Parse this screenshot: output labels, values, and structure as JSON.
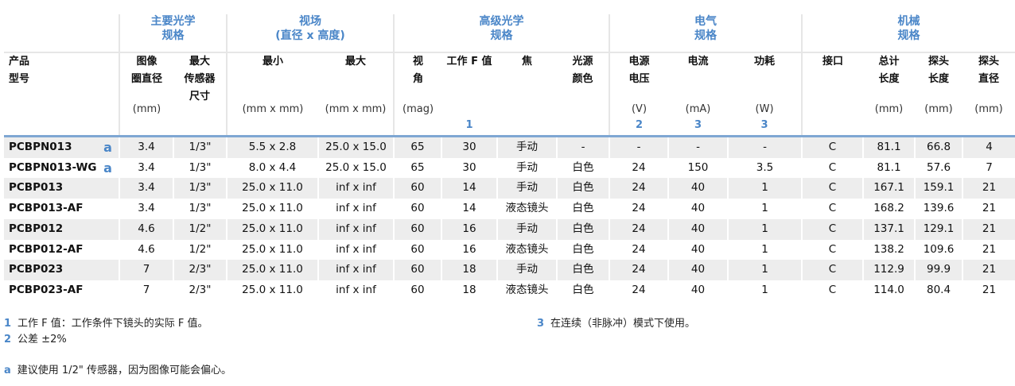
{
  "groups": [
    "主要光学\n规格",
    "视场\n(直径 x 高度)",
    "高级光学\n规格",
    "电气\n规格",
    "机械\n规格"
  ],
  "columns": [
    {
      "label": "产品\n型号",
      "unit": "",
      "note": ""
    },
    {
      "label": "",
      "unit": "",
      "note": ""
    },
    {
      "label": "图像\n圈直径",
      "unit": "(mm)",
      "note": ""
    },
    {
      "label": "最大\n传感器\n尺寸",
      "unit": "",
      "note": ""
    },
    {
      "label": "最小",
      "unit": "(mm x mm)",
      "note": ""
    },
    {
      "label": "最大",
      "unit": "(mm x mm)",
      "note": ""
    },
    {
      "label": "视\n角",
      "unit": "(mag)",
      "note": ""
    },
    {
      "label": "工作 F 值",
      "unit": "",
      "note": "1"
    },
    {
      "label": "焦",
      "unit": "",
      "note": ""
    },
    {
      "label": "光源\n颜色",
      "unit": "",
      "note": ""
    },
    {
      "label": "电源\n电压",
      "unit": "(V)",
      "note": "2"
    },
    {
      "label": "电流",
      "unit": "(mA)",
      "note": "3"
    },
    {
      "label": "功耗",
      "unit": "(W)",
      "note": "3"
    },
    {
      "label": "接口",
      "unit": "",
      "note": ""
    },
    {
      "label": "总计\n长度",
      "unit": "(mm)",
      "note": ""
    },
    {
      "label": "探头\n长度",
      "unit": "(mm)",
      "note": ""
    },
    {
      "label": "探头\n直径",
      "unit": "(mm)",
      "note": ""
    }
  ],
  "rows": [
    [
      "PCBPN013",
      "a",
      "3.4",
      "1/3\"",
      "5.5 x 2.8",
      "25.0 x 15.0",
      "65",
      "30",
      "手动",
      "-",
      "-",
      "-",
      "-",
      "C",
      "81.1",
      "66.8",
      "4"
    ],
    [
      "PCBPN013-WG",
      "a",
      "3.4",
      "1/3\"",
      "8.0 x 4.4",
      "25.0 x 15.0",
      "65",
      "30",
      "手动",
      "白色",
      "24",
      "150",
      "3.5",
      "C",
      "81.1",
      "57.6",
      "7"
    ],
    [
      "PCBP013",
      "",
      "3.4",
      "1/3\"",
      "25.0 x 11.0",
      "inf x inf",
      "60",
      "14",
      "手动",
      "白色",
      "24",
      "40",
      "1",
      "C",
      "167.1",
      "159.1",
      "21"
    ],
    [
      "PCBP013-AF",
      "",
      "3.4",
      "1/3\"",
      "25.0 x 11.0",
      "inf x inf",
      "60",
      "14",
      "液态镜头",
      "白色",
      "24",
      "40",
      "1",
      "C",
      "168.2",
      "139.6",
      "21"
    ],
    [
      "PCBP012",
      "",
      "4.6",
      "1/2\"",
      "25.0 x 11.0",
      "inf x inf",
      "60",
      "16",
      "手动",
      "白色",
      "24",
      "40",
      "1",
      "C",
      "137.1",
      "129.1",
      "21"
    ],
    [
      "PCBP012-AF",
      "",
      "4.6",
      "1/2\"",
      "25.0 x 11.0",
      "inf x inf",
      "60",
      "16",
      "液态镜头",
      "白色",
      "24",
      "40",
      "1",
      "C",
      "138.2",
      "109.6",
      "21"
    ],
    [
      "PCBP023",
      "",
      "7",
      "2/3\"",
      "25.0 x 11.0",
      "inf x inf",
      "60",
      "18",
      "手动",
      "白色",
      "24",
      "40",
      "1",
      "C",
      "112.9",
      "99.9",
      "21"
    ],
    [
      "PCBP023-AF",
      "",
      "7",
      "2/3\"",
      "25.0 x 11.0",
      "inf x inf",
      "60",
      "18",
      "液态镜头",
      "白色",
      "24",
      "40",
      "1",
      "C",
      "114.0",
      "80.4",
      "21"
    ]
  ],
  "footnotes": [
    {
      "mark": "1",
      "text": "工作 F 值：工作条件下镜头的实际 F 值。"
    },
    {
      "mark": "2",
      "text": "公差 ±2%"
    },
    {
      "mark": "3",
      "text": "在连续（非脉冲）模式下使用。"
    },
    {
      "mark": "a",
      "text": "建议使用 1/2\" 传感器，因为图像可能会偏心。"
    }
  ],
  "colors": {
    "accent": "#4a86c8",
    "row_stripe": "#ededed"
  }
}
